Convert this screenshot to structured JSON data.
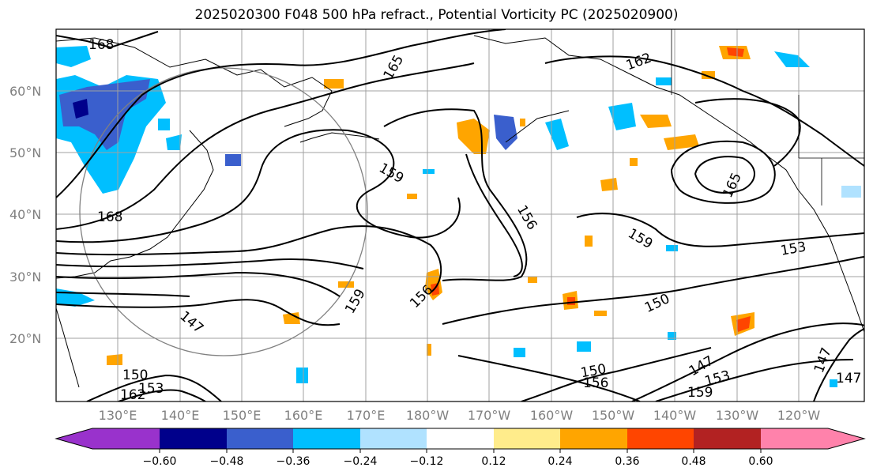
{
  "title": "2025020300 F048 500 hPa refract., Potential Vorticity PC (2025020900)",
  "lat_labels": [
    "60°N",
    "50°N",
    "40°N",
    "30°N",
    "20°N"
  ],
  "lon_labels": [
    "130°E",
    "140°E",
    "150°E",
    "160°E",
    "170°E",
    "180°W",
    "170°W",
    "160°W",
    "150°W",
    "140°W",
    "130°W",
    "120°W"
  ],
  "colorbar": {
    "ticks": [
      "−0.60",
      "−0.48",
      "−0.36",
      "−0.24",
      "−0.12",
      "0.12",
      "0.24",
      "0.36",
      "0.48",
      "0.60"
    ],
    "colors": [
      "#9932cc",
      "#00008b",
      "#3a5fcd",
      "#00bfff",
      "#b0e2ff",
      "#ffffff",
      "#ffec8b",
      "#ffa500",
      "#ff4500",
      "#b22222",
      "#ff82ab"
    ]
  },
  "contour_labels": [
    "168",
    "165",
    "162",
    "159",
    "156",
    "159",
    "150",
    "153",
    "147",
    "159",
    "156",
    "165",
    "168",
    "147",
    "150",
    "153",
    "147",
    "147",
    "150",
    "153",
    "156",
    "159",
    "162"
  ]
}
